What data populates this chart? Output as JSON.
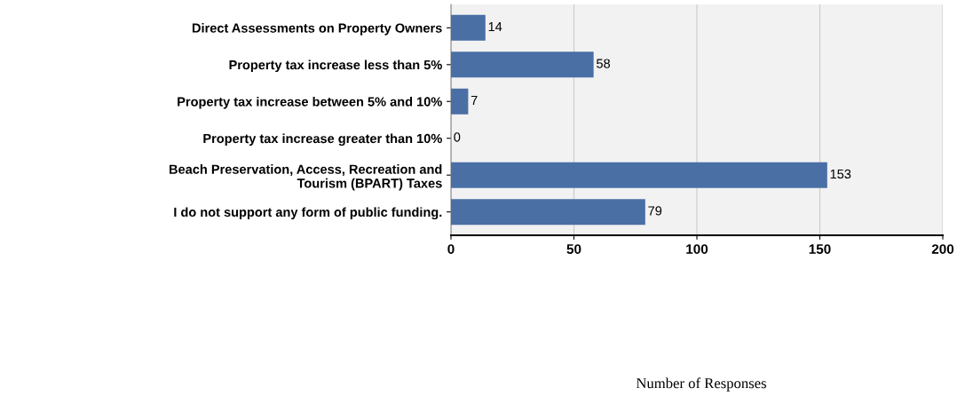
{
  "chart_data": {
    "type": "bar",
    "orientation": "horizontal",
    "categories": [
      "Direct Assessments on Property Owners",
      "Property tax increase less than 5%",
      "Property tax increase between 5% and 10%",
      "Property tax increase greater than 10%",
      "Beach Preservation, Access, Recreation and\nTourism (BPART) Taxes",
      "I do not support any form of public funding."
    ],
    "values": [
      14,
      58,
      7,
      0,
      153,
      79
    ],
    "color": "#4a6fa5",
    "xlim": [
      0,
      200
    ],
    "xticks": [
      0,
      50,
      100,
      150,
      200
    ],
    "annotations": [
      "Number of Responses"
    ],
    "grid": "x",
    "data_labels": true
  }
}
